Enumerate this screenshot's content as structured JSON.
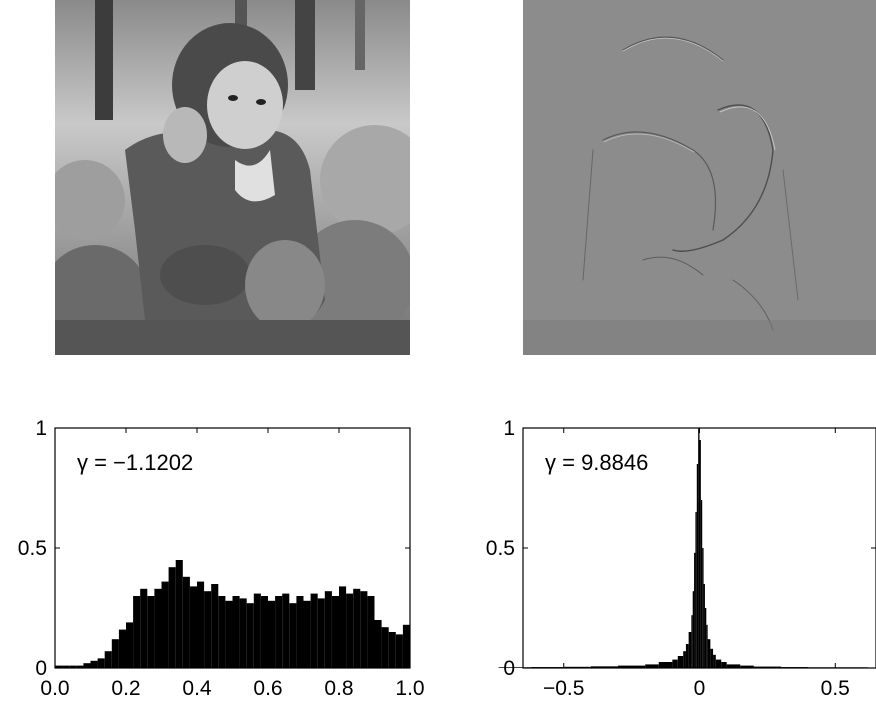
{
  "images": [
    {
      "name": "child-photo",
      "description": "grayscale photograph of a child sitting in grass"
    },
    {
      "name": "filtered-photo",
      "description": "high-pass filtered edge image of the same photograph"
    }
  ],
  "chart_data": [
    {
      "type": "bar",
      "annotation": "γ = −1.1202",
      "xlim": [
        0.0,
        1.0
      ],
      "ylim": [
        0,
        1
      ],
      "xticks": [
        "0.0",
        "0.2",
        "0.4",
        "0.6",
        "0.8",
        "1.0"
      ],
      "yticks": [
        "0",
        "0.5",
        "1"
      ],
      "grid": false,
      "x": [
        0.02,
        0.04,
        0.06,
        0.08,
        0.1,
        0.12,
        0.14,
        0.16,
        0.18,
        0.2,
        0.22,
        0.24,
        0.26,
        0.28,
        0.3,
        0.32,
        0.34,
        0.36,
        0.38,
        0.4,
        0.42,
        0.44,
        0.46,
        0.48,
        0.5,
        0.52,
        0.54,
        0.56,
        0.58,
        0.6,
        0.62,
        0.64,
        0.66,
        0.68,
        0.7,
        0.72,
        0.74,
        0.76,
        0.78,
        0.8,
        0.82,
        0.84,
        0.86,
        0.88,
        0.9,
        0.92,
        0.94,
        0.96,
        0.98,
        1.0
      ],
      "values": [
        0.01,
        0.01,
        0.01,
        0.01,
        0.02,
        0.03,
        0.04,
        0.07,
        0.12,
        0.16,
        0.19,
        0.3,
        0.33,
        0.3,
        0.33,
        0.36,
        0.42,
        0.45,
        0.38,
        0.34,
        0.36,
        0.32,
        0.35,
        0.3,
        0.28,
        0.3,
        0.29,
        0.27,
        0.31,
        0.3,
        0.28,
        0.3,
        0.31,
        0.27,
        0.3,
        0.28,
        0.31,
        0.29,
        0.32,
        0.3,
        0.34,
        0.31,
        0.33,
        0.32,
        0.3,
        0.2,
        0.17,
        0.15,
        0.14,
        0.18
      ]
    },
    {
      "type": "bar",
      "annotation": "γ = 9.8846",
      "xlim": [
        -0.65,
        0.65
      ],
      "ylim": [
        0,
        1
      ],
      "xticks": [
        "−0.5",
        "0",
        "0.5"
      ],
      "yticks": [
        "0",
        "0.5",
        "1"
      ],
      "grid": false,
      "x": [
        -0.62,
        -0.5,
        -0.4,
        -0.3,
        -0.2,
        -0.15,
        -0.1,
        -0.08,
        -0.06,
        -0.05,
        -0.04,
        -0.03,
        -0.025,
        -0.02,
        -0.015,
        -0.01,
        -0.005,
        0.0,
        0.005,
        0.01,
        0.015,
        0.02,
        0.025,
        0.03,
        0.04,
        0.05,
        0.06,
        0.08,
        0.1,
        0.15,
        0.2,
        0.3,
        0.4,
        0.5,
        0.62
      ],
      "values": [
        0.003,
        0.004,
        0.005,
        0.007,
        0.01,
        0.015,
        0.025,
        0.035,
        0.05,
        0.07,
        0.1,
        0.15,
        0.22,
        0.32,
        0.48,
        0.65,
        0.85,
        1.0,
        0.95,
        0.7,
        0.5,
        0.35,
        0.25,
        0.18,
        0.12,
        0.08,
        0.055,
        0.035,
        0.025,
        0.015,
        0.01,
        0.006,
        0.004,
        0.003,
        0.003
      ]
    }
  ]
}
